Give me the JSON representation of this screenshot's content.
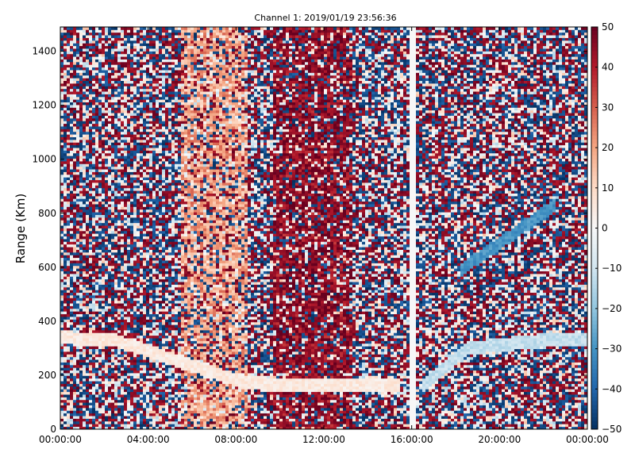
{
  "chart_data": {
    "type": "heatmap",
    "title": "Channel 1: 2019/01/19 23:56:36",
    "xlabel": "",
    "ylabel": "Range (Km)",
    "x_tick_labels": [
      "00:00:00",
      "04:00:00",
      "08:00:00",
      "12:00:00",
      "16:00:00",
      "20:00:00",
      "00:00:00"
    ],
    "x_range_hours": [
      0,
      24
    ],
    "y_ticks": [
      0,
      200,
      400,
      600,
      800,
      1000,
      1200,
      1400
    ],
    "ylim": [
      0,
      1490
    ],
    "colorbar": {
      "ticks": [
        50,
        40,
        30,
        20,
        10,
        0,
        -10,
        -20,
        -30,
        -40,
        -50
      ],
      "range": [
        -50,
        50
      ],
      "colormap": "RdBu_r",
      "colors": [
        "#053061",
        "#2166ac",
        "#4393c3",
        "#92c5de",
        "#d1e5f0",
        "#f7f7f7",
        "#fddbc7",
        "#f4a582",
        "#d6604d",
        "#b2182b",
        "#67001f"
      ]
    },
    "features": [
      {
        "name": "positive band",
        "t_start": 9.7,
        "t_end": 13.3,
        "range_start": 0,
        "range_end": 1490,
        "value": 45
      },
      {
        "name": "positive band",
        "t_start": 5.5,
        "t_end": 8.5,
        "range_start": 0,
        "range_end": 1490,
        "value": 20
      },
      {
        "name": "trace",
        "points": [
          [
            0,
            340
          ],
          [
            2.5,
            330
          ],
          [
            8.5,
            170
          ],
          [
            15.5,
            160
          ]
        ],
        "value": 5
      },
      {
        "name": "trace",
        "points": [
          [
            16.5,
            160
          ],
          [
            18.5,
            300
          ],
          [
            22,
            330
          ],
          [
            24,
            335
          ]
        ],
        "value": -12
      },
      {
        "name": "trace",
        "points": [
          [
            18.2,
            590
          ],
          [
            20.2,
            700
          ],
          [
            22.5,
            830
          ]
        ],
        "value": -30
      },
      {
        "name": "data gap",
        "t_start": 15.85,
        "t_end": 16.2
      }
    ]
  }
}
